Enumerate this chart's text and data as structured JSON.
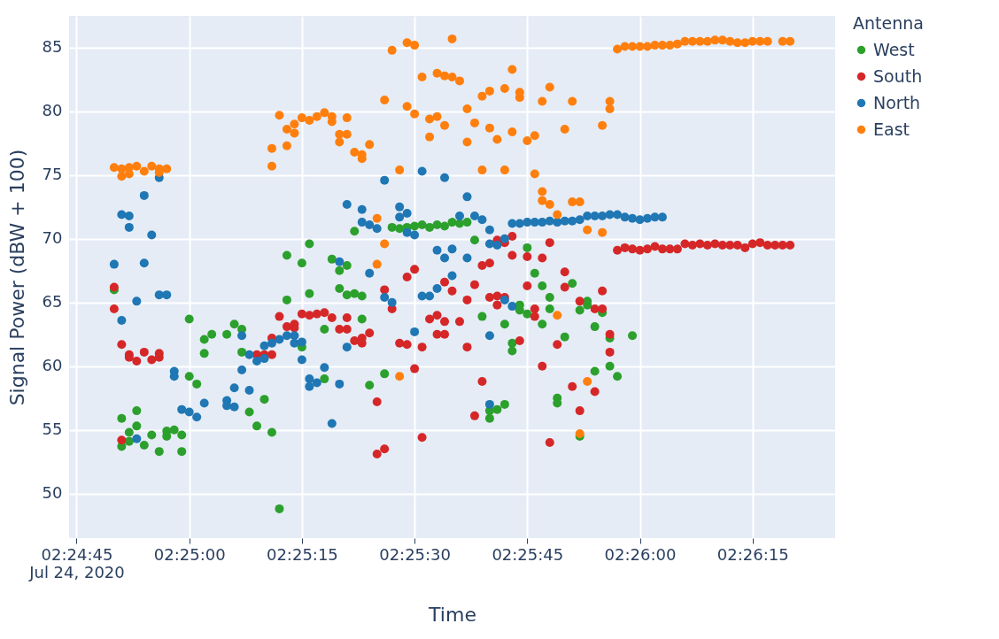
{
  "chart_data": {
    "type": "scatter",
    "xlabel": "Time",
    "ylabel": "Signal Power (dBW + 100)",
    "legend_title": "Antenna",
    "legend": "top right",
    "grid": true,
    "marker": "circle",
    "xlim": [
      "2020-07-24T02:24:44",
      "2020-07-24T02:26:26"
    ],
    "ylim": [
      46.5,
      87.5
    ],
    "yticks": [
      50,
      55,
      60,
      65,
      70,
      75,
      80,
      85
    ],
    "xticks": [
      {
        "value": "2020-07-24T02:24:45",
        "label": "02:24:45\nJul 24, 2020"
      },
      {
        "value": "2020-07-24T02:25:00",
        "label": "02:25:00"
      },
      {
        "value": "2020-07-24T02:25:15",
        "label": "02:25:15"
      },
      {
        "value": "2020-07-24T02:25:30",
        "label": "02:25:30"
      },
      {
        "value": "2020-07-24T02:25:45",
        "label": "02:25:45"
      },
      {
        "value": "2020-07-24T02:26:00",
        "label": "02:26:00"
      },
      {
        "value": "2020-07-24T02:26:15",
        "label": "02:26:15"
      }
    ],
    "series": [
      {
        "name": "West",
        "color": "#2ca02c",
        "x": [
          "2020-07-24T02:24:50",
          "2020-07-24T02:24:51",
          "2020-07-24T02:24:51",
          "2020-07-24T02:24:52",
          "2020-07-24T02:24:52",
          "2020-07-24T02:24:53",
          "2020-07-24T02:24:53",
          "2020-07-24T02:24:54",
          "2020-07-24T02:24:55",
          "2020-07-24T02:24:56",
          "2020-07-24T02:24:57",
          "2020-07-24T02:24:57",
          "2020-07-24T02:24:58",
          "2020-07-24T02:24:59",
          "2020-07-24T02:24:59",
          "2020-07-24T02:25:00",
          "2020-07-24T02:25:00",
          "2020-07-24T02:25:01",
          "2020-07-24T02:25:02",
          "2020-07-24T02:25:02",
          "2020-07-24T02:25:03",
          "2020-07-24T02:25:05",
          "2020-07-24T02:25:06",
          "2020-07-24T02:25:07",
          "2020-07-24T02:25:07",
          "2020-07-24T02:25:08",
          "2020-07-24T02:25:09",
          "2020-07-24T02:25:10",
          "2020-07-24T02:25:11",
          "2020-07-24T02:25:12",
          "2020-07-24T02:25:13",
          "2020-07-24T02:25:13",
          "2020-07-24T02:25:15",
          "2020-07-24T02:25:15",
          "2020-07-24T02:25:16",
          "2020-07-24T02:25:16",
          "2020-07-24T02:25:18",
          "2020-07-24T02:25:18",
          "2020-07-24T02:25:19",
          "2020-07-24T02:25:20",
          "2020-07-24T02:25:20",
          "2020-07-24T02:25:21",
          "2020-07-24T02:25:21",
          "2020-07-24T02:25:22",
          "2020-07-24T02:25:22",
          "2020-07-24T02:25:23",
          "2020-07-24T02:25:23",
          "2020-07-24T02:25:24",
          "2020-07-24T02:25:26",
          "2020-07-24T02:25:27",
          "2020-07-24T02:25:28",
          "2020-07-24T02:25:29",
          "2020-07-24T02:25:30",
          "2020-07-24T02:25:31",
          "2020-07-24T02:25:32",
          "2020-07-24T02:25:33",
          "2020-07-24T02:25:34",
          "2020-07-24T02:25:35",
          "2020-07-24T02:25:36",
          "2020-07-24T02:25:37",
          "2020-07-24T02:25:38",
          "2020-07-24T02:25:39",
          "2020-07-24T02:25:40",
          "2020-07-24T02:25:40",
          "2020-07-24T02:25:41",
          "2020-07-24T02:25:42",
          "2020-07-24T02:25:42",
          "2020-07-24T02:25:43",
          "2020-07-24T02:25:43",
          "2020-07-24T02:25:44",
          "2020-07-24T02:25:44",
          "2020-07-24T02:25:45",
          "2020-07-24T02:25:45",
          "2020-07-24T02:25:46",
          "2020-07-24T02:25:47",
          "2020-07-24T02:25:47",
          "2020-07-24T02:25:48",
          "2020-07-24T02:25:48",
          "2020-07-24T02:25:49",
          "2020-07-24T02:25:49",
          "2020-07-24T02:25:50",
          "2020-07-24T02:25:51",
          "2020-07-24T02:25:52",
          "2020-07-24T02:25:52",
          "2020-07-24T02:25:53",
          "2020-07-24T02:25:53",
          "2020-07-24T02:25:54",
          "2020-07-24T02:25:54",
          "2020-07-24T02:25:55",
          "2020-07-24T02:25:56",
          "2020-07-24T02:25:56",
          "2020-07-24T02:25:57",
          "2020-07-24T02:25:59"
        ],
        "values": [
          66.0,
          55.9,
          53.7,
          54.8,
          54.1,
          56.5,
          55.3,
          53.8,
          54.6,
          53.3,
          54.9,
          54.5,
          55.0,
          54.6,
          53.3,
          63.7,
          59.2,
          58.6,
          62.1,
          61.0,
          62.5,
          62.5,
          63.3,
          62.9,
          61.1,
          56.4,
          55.3,
          57.4,
          54.8,
          48.8,
          65.2,
          68.7,
          68.1,
          61.5,
          65.7,
          69.6,
          62.9,
          59.0,
          68.4,
          67.5,
          66.1,
          67.9,
          65.6,
          65.7,
          70.6,
          65.5,
          63.7,
          58.5,
          59.4,
          70.9,
          70.8,
          70.9,
          71.0,
          71.1,
          70.9,
          71.1,
          71.0,
          71.3,
          71.2,
          71.3,
          69.9,
          63.9,
          56.5,
          55.9,
          56.6,
          57.0,
          63.3,
          61.8,
          61.2,
          64.8,
          64.4,
          64.1,
          69.3,
          67.3,
          66.3,
          63.3,
          65.4,
          64.5,
          57.5,
          57.1,
          62.3,
          66.5,
          64.4,
          54.5,
          65.1,
          64.8,
          63.1,
          59.6,
          64.2,
          62.2,
          60.0,
          59.2,
          62.4
        ]
      },
      {
        "name": "South",
        "color": "#d62728",
        "x": [
          "2020-07-24T02:24:50",
          "2020-07-24T02:24:50",
          "2020-07-24T02:24:51",
          "2020-07-24T02:24:51",
          "2020-07-24T02:24:52",
          "2020-07-24T02:24:52",
          "2020-07-24T02:24:53",
          "2020-07-24T02:24:54",
          "2020-07-24T02:24:55",
          "2020-07-24T02:24:56",
          "2020-07-24T02:24:56",
          "2020-07-24T02:25:09",
          "2020-07-24T02:25:10",
          "2020-07-24T02:25:11",
          "2020-07-24T02:25:11",
          "2020-07-24T02:25:12",
          "2020-07-24T02:25:13",
          "2020-07-24T02:25:14",
          "2020-07-24T02:25:14",
          "2020-07-24T02:25:15",
          "2020-07-24T02:25:16",
          "2020-07-24T02:25:17",
          "2020-07-24T02:25:18",
          "2020-07-24T02:25:19",
          "2020-07-24T02:25:20",
          "2020-07-24T02:25:21",
          "2020-07-24T02:25:21",
          "2020-07-24T02:25:22",
          "2020-07-24T02:25:23",
          "2020-07-24T02:25:23",
          "2020-07-24T02:25:24",
          "2020-07-24T02:25:25",
          "2020-07-24T02:25:25",
          "2020-07-24T02:25:26",
          "2020-07-24T02:25:26",
          "2020-07-24T02:25:27",
          "2020-07-24T02:25:28",
          "2020-07-24T02:25:29",
          "2020-07-24T02:25:29",
          "2020-07-24T02:25:30",
          "2020-07-24T02:25:30",
          "2020-07-24T02:25:31",
          "2020-07-24T02:25:31",
          "2020-07-24T02:25:32",
          "2020-07-24T02:25:33",
          "2020-07-24T02:25:33",
          "2020-07-24T02:25:34",
          "2020-07-24T02:25:34",
          "2020-07-24T02:25:34",
          "2020-07-24T02:25:35",
          "2020-07-24T02:25:36",
          "2020-07-24T02:25:37",
          "2020-07-24T02:25:37",
          "2020-07-24T02:25:38",
          "2020-07-24T02:25:38",
          "2020-07-24T02:25:39",
          "2020-07-24T02:25:39",
          "2020-07-24T02:25:40",
          "2020-07-24T02:25:40",
          "2020-07-24T02:25:41",
          "2020-07-24T02:25:41",
          "2020-07-24T02:25:42",
          "2020-07-24T02:25:41",
          "2020-07-24T02:25:42",
          "2020-07-24T02:25:43",
          "2020-07-24T02:25:43",
          "2020-07-24T02:25:44",
          "2020-07-24T02:25:45",
          "2020-07-24T02:25:45",
          "2020-07-24T02:25:46",
          "2020-07-24T02:25:46",
          "2020-07-24T02:25:47",
          "2020-07-24T02:25:47",
          "2020-07-24T02:25:48",
          "2020-07-24T02:25:48",
          "2020-07-24T02:25:49",
          "2020-07-24T02:25:50",
          "2020-07-24T02:25:50",
          "2020-07-24T02:25:51",
          "2020-07-24T02:25:52",
          "2020-07-24T02:25:52",
          "2020-07-24T02:25:54",
          "2020-07-24T02:25:54",
          "2020-07-24T02:25:55",
          "2020-07-24T02:25:55",
          "2020-07-24T02:25:56",
          "2020-07-24T02:25:56",
          "2020-07-24T02:25:57",
          "2020-07-24T02:25:58",
          "2020-07-24T02:25:59",
          "2020-07-24T02:26:00",
          "2020-07-24T02:26:01",
          "2020-07-24T02:26:02",
          "2020-07-24T02:26:03",
          "2020-07-24T02:26:04",
          "2020-07-24T02:26:05",
          "2020-07-24T02:26:06",
          "2020-07-24T02:26:07",
          "2020-07-24T02:26:08",
          "2020-07-24T02:26:09",
          "2020-07-24T02:26:10",
          "2020-07-24T02:26:11",
          "2020-07-24T02:26:12",
          "2020-07-24T02:26:13",
          "2020-07-24T02:26:14",
          "2020-07-24T02:26:15",
          "2020-07-24T02:26:16",
          "2020-07-24T02:26:17",
          "2020-07-24T02:26:18",
          "2020-07-24T02:26:19",
          "2020-07-24T02:26:20"
        ],
        "values": [
          66.2,
          64.5,
          61.7,
          54.2,
          60.9,
          60.7,
          60.4,
          61.1,
          60.5,
          61.0,
          60.7,
          60.9,
          60.9,
          62.2,
          60.9,
          63.9,
          63.1,
          63.3,
          63.0,
          64.1,
          64.0,
          64.1,
          64.2,
          63.8,
          62.9,
          62.9,
          63.8,
          62.0,
          62.2,
          61.8,
          62.6,
          57.2,
          53.1,
          53.5,
          66.0,
          64.5,
          61.8,
          61.7,
          67.0,
          67.6,
          59.8,
          61.5,
          54.4,
          63.7,
          64.0,
          62.5,
          63.5,
          62.5,
          66.6,
          65.9,
          63.5,
          65.2,
          61.5,
          66.4,
          56.1,
          67.9,
          58.8,
          68.1,
          65.4,
          65.5,
          64.8,
          65.4,
          69.9,
          69.7,
          70.2,
          68.7,
          62.0,
          68.6,
          66.3,
          64.5,
          63.9,
          68.5,
          60.0,
          69.7,
          54.0,
          61.7,
          67.4,
          66.2,
          58.4,
          65.1,
          56.5,
          64.5,
          58.0,
          64.5,
          65.9,
          62.5,
          61.1,
          69.1,
          69.3,
          69.2,
          69.1,
          69.2,
          69.4,
          69.2,
          69.2,
          69.2,
          69.6,
          69.5,
          69.6,
          69.5,
          69.6,
          69.5,
          69.5,
          69.5,
          69.3,
          69.6,
          69.7,
          69.5,
          69.5,
          69.5,
          69.5
        ]
      },
      {
        "name": "North",
        "color": "#1f77b4",
        "x": [
          "2020-07-24T02:24:50",
          "2020-07-24T02:24:51",
          "2020-07-24T02:24:51",
          "2020-07-24T02:24:52",
          "2020-07-24T02:24:52",
          "2020-07-24T02:24:53",
          "2020-07-24T02:24:53",
          "2020-07-24T02:24:54",
          "2020-07-24T02:24:54",
          "2020-07-24T02:24:55",
          "2020-07-24T02:24:56",
          "2020-07-24T02:24:56",
          "2020-07-24T02:24:57",
          "2020-07-24T02:24:58",
          "2020-07-24T02:24:58",
          "2020-07-24T02:24:59",
          "2020-07-24T02:25:00",
          "2020-07-24T02:25:01",
          "2020-07-24T02:25:02",
          "2020-07-24T02:25:05",
          "2020-07-24T02:25:05",
          "2020-07-24T02:25:06",
          "2020-07-24T02:25:06",
          "2020-07-24T02:25:07",
          "2020-07-24T02:25:07",
          "2020-07-24T02:25:08",
          "2020-07-24T02:25:08",
          "2020-07-24T02:25:09",
          "2020-07-24T02:25:10",
          "2020-07-24T02:25:10",
          "2020-07-24T02:25:11",
          "2020-07-24T02:25:12",
          "2020-07-24T02:25:13",
          "2020-07-24T02:25:14",
          "2020-07-24T02:25:14",
          "2020-07-24T02:25:15",
          "2020-07-24T02:25:15",
          "2020-07-24T02:25:16",
          "2020-07-24T02:25:16",
          "2020-07-24T02:25:17",
          "2020-07-24T02:25:18",
          "2020-07-24T02:25:19",
          "2020-07-24T02:25:20",
          "2020-07-24T02:25:20",
          "2020-07-24T02:25:21",
          "2020-07-24T02:25:21",
          "2020-07-24T02:25:23",
          "2020-07-24T02:25:23",
          "2020-07-24T02:25:24",
          "2020-07-24T02:25:24",
          "2020-07-24T02:25:25",
          "2020-07-24T02:25:26",
          "2020-07-24T02:25:26",
          "2020-07-24T02:25:27",
          "2020-07-24T02:25:28",
          "2020-07-24T02:25:28",
          "2020-07-24T02:25:29",
          "2020-07-24T02:25:29",
          "2020-07-24T02:25:30",
          "2020-07-24T02:25:30",
          "2020-07-24T02:25:31",
          "2020-07-24T02:25:31",
          "2020-07-24T02:25:32",
          "2020-07-24T02:25:33",
          "2020-07-24T02:25:33",
          "2020-07-24T02:25:34",
          "2020-07-24T02:25:34",
          "2020-07-24T02:25:35",
          "2020-07-24T02:25:35",
          "2020-07-24T02:25:36",
          "2020-07-24T02:25:37",
          "2020-07-24T02:25:37",
          "2020-07-24T02:25:38",
          "2020-07-24T02:25:39",
          "2020-07-24T02:25:40",
          "2020-07-24T02:25:40",
          "2020-07-24T02:25:40",
          "2020-07-24T02:25:40",
          "2020-07-24T02:25:41",
          "2020-07-24T02:25:42",
          "2020-07-24T02:25:42",
          "2020-07-24T02:25:43",
          "2020-07-24T02:25:43",
          "2020-07-24T02:25:44",
          "2020-07-24T02:25:45",
          "2020-07-24T02:25:46",
          "2020-07-24T02:25:47",
          "2020-07-24T02:25:48",
          "2020-07-24T02:25:49",
          "2020-07-24T02:25:50",
          "2020-07-24T02:25:51",
          "2020-07-24T02:25:52",
          "2020-07-24T02:25:53",
          "2020-07-24T02:25:54",
          "2020-07-24T02:25:55",
          "2020-07-24T02:25:56",
          "2020-07-24T02:25:57",
          "2020-07-24T02:25:58",
          "2020-07-24T02:25:59",
          "2020-07-24T02:26:00",
          "2020-07-24T02:26:01",
          "2020-07-24T02:26:02",
          "2020-07-24T02:26:03"
        ],
        "values": [
          68.0,
          71.9,
          63.6,
          71.8,
          70.9,
          65.1,
          54.3,
          73.4,
          68.1,
          70.3,
          74.8,
          65.6,
          65.6,
          59.6,
          59.2,
          56.6,
          56.4,
          56.0,
          57.1,
          57.3,
          56.9,
          56.8,
          58.3,
          59.7,
          62.4,
          58.1,
          60.9,
          60.4,
          60.6,
          61.6,
          61.8,
          62.1,
          62.4,
          62.4,
          61.8,
          61.9,
          60.5,
          59.0,
          58.4,
          58.7,
          59.9,
          55.5,
          68.2,
          58.6,
          72.7,
          61.5,
          72.3,
          71.3,
          71.1,
          67.3,
          70.8,
          74.6,
          65.4,
          65.0,
          72.5,
          71.7,
          72.0,
          70.5,
          70.3,
          62.7,
          75.3,
          65.5,
          65.5,
          69.1,
          66.1,
          74.8,
          68.5,
          69.2,
          67.1,
          71.8,
          73.3,
          68.5,
          71.8,
          71.5,
          70.7,
          69.6,
          62.4,
          57.0,
          69.5,
          70.0,
          65.2,
          71.2,
          64.7,
          71.2,
          71.3,
          71.3,
          71.3,
          71.4,
          71.3,
          71.4,
          71.4,
          71.5,
          71.8,
          71.8,
          71.8,
          71.9,
          71.9,
          71.7,
          71.6,
          71.5,
          71.6,
          71.7,
          71.7
        ]
      },
      {
        "name": "East",
        "color": "#ff7f0e",
        "x": [
          "2020-07-24T02:24:50",
          "2020-07-24T02:24:51",
          "2020-07-24T02:24:51",
          "2020-07-24T02:24:52",
          "2020-07-24T02:24:52",
          "2020-07-24T02:24:53",
          "2020-07-24T02:24:54",
          "2020-07-24T02:24:55",
          "2020-07-24T02:24:56",
          "2020-07-24T02:24:56",
          "2020-07-24T02:24:57",
          "2020-07-24T02:25:11",
          "2020-07-24T02:25:11",
          "2020-07-24T02:25:12",
          "2020-07-24T02:25:13",
          "2020-07-24T02:25:13",
          "2020-07-24T02:25:14",
          "2020-07-24T02:25:14",
          "2020-07-24T02:25:15",
          "2020-07-24T02:25:16",
          "2020-07-24T02:25:17",
          "2020-07-24T02:25:18",
          "2020-07-24T02:25:19",
          "2020-07-24T02:25:19",
          "2020-07-24T02:25:20",
          "2020-07-24T02:25:20",
          "2020-07-24T02:25:21",
          "2020-07-24T02:25:21",
          "2020-07-24T02:25:22",
          "2020-07-24T02:25:23",
          "2020-07-24T02:25:23",
          "2020-07-24T02:25:24",
          "2020-07-24T02:25:25",
          "2020-07-24T02:25:25",
          "2020-07-24T02:25:26",
          "2020-07-24T02:25:26",
          "2020-07-24T02:25:27",
          "2020-07-24T02:25:28",
          "2020-07-24T02:25:28",
          "2020-07-24T02:25:29",
          "2020-07-24T02:25:29",
          "2020-07-24T02:25:30",
          "2020-07-24T02:25:30",
          "2020-07-24T02:25:31",
          "2020-07-24T02:25:32",
          "2020-07-24T02:25:32",
          "2020-07-24T02:25:33",
          "2020-07-24T02:25:33",
          "2020-07-24T02:25:34",
          "2020-07-24T02:25:34",
          "2020-07-24T02:25:35",
          "2020-07-24T02:25:35",
          "2020-07-24T02:25:36",
          "2020-07-24T02:25:37",
          "2020-07-24T02:25:37",
          "2020-07-24T02:25:38",
          "2020-07-24T02:25:39",
          "2020-07-24T02:25:39",
          "2020-07-24T02:25:40",
          "2020-07-24T02:25:40",
          "2020-07-24T02:25:41",
          "2020-07-24T02:25:42",
          "2020-07-24T02:25:42",
          "2020-07-24T02:25:43",
          "2020-07-24T02:25:43",
          "2020-07-24T02:25:44",
          "2020-07-24T02:25:44",
          "2020-07-24T02:25:45",
          "2020-07-24T02:25:46",
          "2020-07-24T02:25:46",
          "2020-07-24T02:25:47",
          "2020-07-24T02:25:47",
          "2020-07-24T02:25:47",
          "2020-07-24T02:25:48",
          "2020-07-24T02:25:48",
          "2020-07-24T02:25:49",
          "2020-07-24T02:25:49",
          "2020-07-24T02:25:50",
          "2020-07-24T02:25:51",
          "2020-07-24T02:25:51",
          "2020-07-24T02:25:52",
          "2020-07-24T02:25:52",
          "2020-07-24T02:25:53",
          "2020-07-24T02:25:53",
          "2020-07-24T02:25:55",
          "2020-07-24T02:25:55",
          "2020-07-24T02:25:56",
          "2020-07-24T02:25:56",
          "2020-07-24T02:25:57",
          "2020-07-24T02:25:58",
          "2020-07-24T02:25:59",
          "2020-07-24T02:26:00",
          "2020-07-24T02:26:01",
          "2020-07-24T02:26:02",
          "2020-07-24T02:26:03",
          "2020-07-24T02:26:04",
          "2020-07-24T02:26:05",
          "2020-07-24T02:26:06",
          "2020-07-24T02:26:07",
          "2020-07-24T02:26:08",
          "2020-07-24T02:26:09",
          "2020-07-24T02:26:10",
          "2020-07-24T02:26:11",
          "2020-07-24T02:26:12",
          "2020-07-24T02:26:13",
          "2020-07-24T02:26:14",
          "2020-07-24T02:26:15",
          "2020-07-24T02:26:16",
          "2020-07-24T02:26:17",
          "2020-07-24T02:26:19",
          "2020-07-24T02:26:20"
        ],
        "values": [
          75.6,
          74.9,
          75.5,
          75.1,
          75.6,
          75.7,
          75.3,
          75.7,
          75.2,
          75.5,
          75.5,
          77.1,
          75.7,
          79.7,
          78.6,
          77.3,
          79.0,
          78.3,
          79.5,
          79.3,
          79.6,
          79.9,
          79.6,
          79.2,
          78.2,
          77.6,
          79.5,
          78.2,
          76.8,
          76.6,
          76.3,
          77.4,
          71.6,
          68.0,
          80.9,
          69.6,
          84.8,
          75.4,
          59.2,
          85.4,
          80.4,
          85.2,
          79.8,
          82.7,
          79.4,
          78.0,
          83.0,
          79.6,
          82.8,
          78.9,
          85.7,
          82.7,
          82.4,
          80.2,
          77.6,
          79.1,
          81.2,
          75.4,
          81.6,
          78.7,
          77.8,
          81.8,
          75.4,
          83.3,
          78.4,
          81.5,
          81.1,
          77.7,
          78.1,
          75.1,
          73.0,
          80.8,
          73.7,
          81.9,
          72.7,
          71.9,
          64.0,
          78.6,
          80.8,
          72.9,
          72.9,
          54.7,
          70.7,
          58.8,
          70.5,
          78.9,
          80.8,
          80.2,
          84.9,
          85.1,
          85.1,
          85.1,
          85.1,
          85.2,
          85.2,
          85.2,
          85.3,
          85.5,
          85.5,
          85.5,
          85.5,
          85.6,
          85.6,
          85.5,
          85.4,
          85.4,
          85.5,
          85.5,
          85.5,
          85.5,
          85.5
        ]
      }
    ]
  }
}
